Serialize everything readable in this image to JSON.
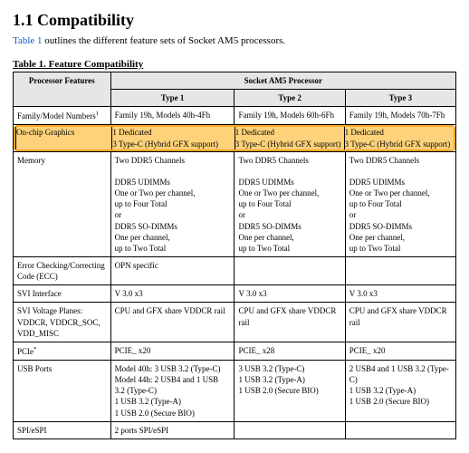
{
  "heading": "1.1 Compatibility",
  "intro_prefix": "Table 1",
  "intro_rest": " outlines the different feature sets of Socket AM5 processors.",
  "caption": "Table 1. Feature Compatibility",
  "header": {
    "col0": "Processor Features",
    "group": "Socket AM5 Processor",
    "type1": "Type 1",
    "type2": "Type 2",
    "type3": "Type 3"
  },
  "rows": {
    "family": {
      "label": "Family/Model Numbers",
      "sup": "1",
      "t1": "Family 19h, Models 40h-4Fh",
      "t2": "Family 19h, Models 60h-6Fh",
      "t3": "Family 19h, Models 70h-7Fh"
    },
    "gfx": {
      "label": "On-chip Graphics",
      "line1": "1 Dedicated",
      "line2": "3 Type-C (Hybrid GFX support)"
    },
    "memory": {
      "label": "Memory",
      "a1": "Two DDR5 Channels",
      "b1": "DDR5 UDIMMs",
      "b2": "One or Two per channel,",
      "b3": "up to Four Total",
      "b4": "or",
      "b5": "DDR5 SO-DIMMs",
      "b6": "One per channel,",
      "b7": "up to Two Total"
    },
    "ecc": {
      "label": "Error Checking/Correcting Code (ECC)",
      "t1": "OPN specific"
    },
    "svi": {
      "label": "SVI Interface",
      "v": "V 3.0 x3"
    },
    "planes": {
      "label": "SVI Voltage Planes: VDDCR, VDDCR_SOC, VDD_MISC",
      "v": "CPU and GFX share VDDCR rail"
    },
    "pcie": {
      "label": "PCIe",
      "star": "*",
      "t1": "PCIE_ x20",
      "t2": "PCIE_ x28",
      "t3": "PCIE_ x20"
    },
    "usb": {
      "label": "USB Ports",
      "t1l1": "Model 40h: 3 USB 3.2 (Type-C)",
      "t1l2": "Model 44h: 2 USB4 and 1 USB 3.2 (Type-C)",
      "t1l3": "1 USB 3.2 (Type-A)",
      "t1l4": "1 USB 2.0 (Secure BIO)",
      "t2l1": "3 USB 3.2 (Type-C)",
      "t2l2": "1 USB 3.2 (Type-A)",
      "t2l3": "1 USB 2.0 (Secure BIO)",
      "t3l1": "2 USB4 and 1 USB 3.2 (Type-C)",
      "t3l2": "1 USB 3.2 (Type-A)",
      "t3l3": "1 USB 2.0 (Secure BIO)"
    },
    "spi": {
      "label": "SPI/eSPI",
      "t1": "2 ports SPI/eSPI"
    }
  }
}
